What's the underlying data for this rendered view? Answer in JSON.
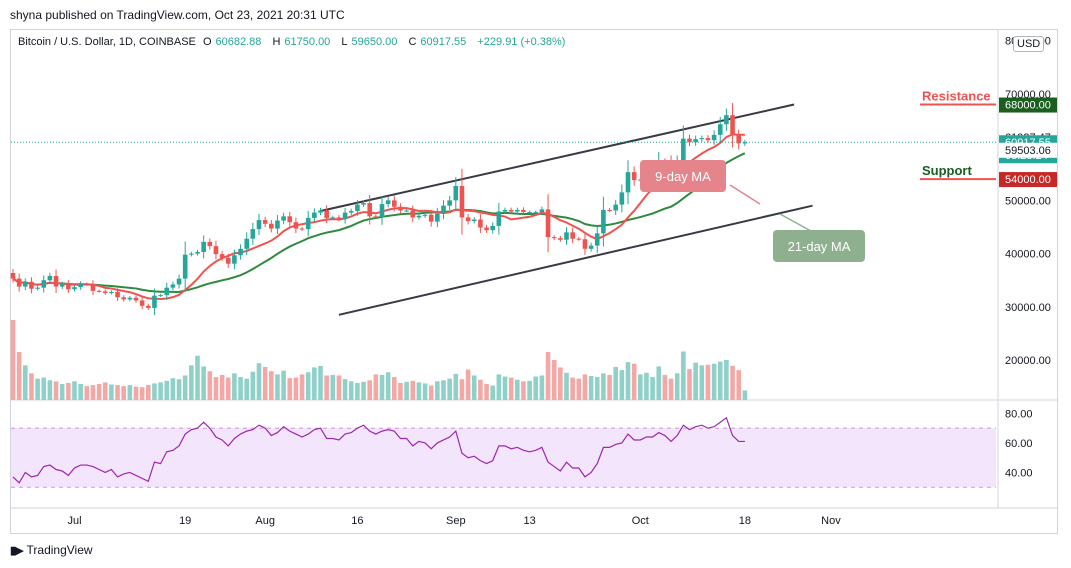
{
  "caption": "shyna published on TradingView.com, Oct 23, 2021 20:31 UTC",
  "symbol": {
    "name": "Bitcoin / U.S. Dollar, 1D, COINBASE",
    "open_label": "O",
    "open": "60682.88",
    "high_label": "H",
    "high": "61750.00",
    "low_label": "L",
    "low": "59650.00",
    "close_label": "C",
    "close": "60917.55",
    "change": "+229.91 (+0.38%)"
  },
  "currency_badge": "USD",
  "footer": "TradingView",
  "colors": {
    "up": "#26a69a",
    "down": "#ef5350",
    "ma9": "#ef5350",
    "ma21": "#2e8b3e",
    "rsi": "#9c27b0",
    "rsi_band": "#f3e5fc",
    "resistance": "#ef5350",
    "support": "#ef5350",
    "label_9ma_bg": "#e5848a",
    "label_21ma_bg": "#8fb08e"
  },
  "chart_data": {
    "type": "candlestick",
    "price_axis_ticks": [
      {
        "value": 80000,
        "label": "80000.00"
      },
      {
        "value": 70000,
        "label": "70000.00"
      },
      {
        "value": 50000,
        "label": "50000.00"
      },
      {
        "value": 40000,
        "label": "40000.00"
      },
      {
        "value": 30000,
        "label": "30000.00"
      },
      {
        "value": 20000,
        "label": "20000.00"
      }
    ],
    "price_range": [
      12500,
      82000
    ],
    "price_tags": [
      {
        "value": 68000,
        "label": "68000.00",
        "style": "resistance"
      },
      {
        "value": 61927.47,
        "label": "61927.47",
        "style": "plain"
      },
      {
        "value": 60917.55,
        "label": "60917.55",
        "sublabel": "03:28:24",
        "style": "current"
      },
      {
        "value": 59503.06,
        "label": "59503.06",
        "style": "plain"
      },
      {
        "value": 54000,
        "label": "54000.00",
        "style": "support"
      }
    ],
    "time_axis": [
      {
        "day": 10,
        "label": "Jul"
      },
      {
        "day": 28,
        "label": "19"
      },
      {
        "day": 41,
        "label": "Aug"
      },
      {
        "day": 56,
        "label": "16"
      },
      {
        "day": 72,
        "label": "Sep"
      },
      {
        "day": 84,
        "label": "13"
      },
      {
        "day": 102,
        "label": "Oct"
      },
      {
        "day": 119,
        "label": "18"
      },
      {
        "day": 133,
        "label": "Nov"
      }
    ],
    "horizontal_levels": [
      {
        "name": "Resistance",
        "value": 68000
      },
      {
        "name": "Support",
        "value": 54000
      }
    ],
    "channel_upper": [
      [
        50,
        48000
      ],
      [
        127,
        68000
      ]
    ],
    "channel_lower": [
      [
        53,
        28500
      ],
      [
        130,
        49000
      ]
    ],
    "ma_labels": [
      {
        "text": "9-day MA",
        "style": "ma9"
      },
      {
        "text": "21-day MA",
        "style": "ma21"
      }
    ],
    "closes": [
      35300,
      33800,
      34700,
      33400,
      33600,
      35000,
      35800,
      33800,
      34300,
      33300,
      33700,
      34300,
      34200,
      33000,
      32900,
      32600,
      32800,
      31800,
      31400,
      31700,
      31200,
      30200,
      29800,
      32100,
      32200,
      33600,
      34200,
      35300,
      39800,
      40000,
      40300,
      42200,
      41400,
      39900,
      39200,
      38100,
      39700,
      40900,
      42800,
      44600,
      46300,
      45600,
      44700,
      46200,
      47000,
      45900,
      44700,
      44600,
      46700,
      47700,
      48100,
      46700,
      46800,
      46500,
      47700,
      48000,
      49200,
      49500,
      47000,
      46900,
      49300,
      50000,
      48800,
      48100,
      48100,
      46800,
      47100,
      47300,
      46000,
      47500,
      49000,
      50000,
      52700,
      46800,
      46100,
      46400,
      44900,
      44400,
      45200,
      47900,
      48200,
      47900,
      48200,
      47800,
      47800,
      47800,
      48300,
      43100,
      42900,
      42600,
      44000,
      42800,
      42700,
      40900,
      41500,
      43800,
      48200,
      48100,
      49200,
      51500,
      55300,
      53800,
      53900,
      54900,
      55000,
      57500,
      57400,
      56000,
      57400,
      61600,
      60900,
      61500,
      61700,
      61300,
      62300,
      64300,
      66000,
      62200,
      60700,
      60900
    ],
    "volumes": [
      15000,
      9000,
      6500,
      5000,
      4000,
      4200,
      3700,
      3500,
      3000,
      3200,
      3500,
      3000,
      2600,
      2800,
      3000,
      3300,
      2900,
      2800,
      2600,
      2800,
      2500,
      2400,
      2800,
      3100,
      3300,
      3600,
      4100,
      3900,
      4600,
      6500,
      8300,
      6300,
      5400,
      4300,
      4700,
      4200,
      5000,
      4300,
      4000,
      5300,
      6900,
      6200,
      5400,
      4800,
      5500,
      4100,
      4200,
      4800,
      5200,
      6100,
      6400,
      4600,
      4700,
      4600,
      3900,
      3500,
      3200,
      3400,
      3700,
      4800,
      4700,
      5200,
      4300,
      3200,
      3400,
      3600,
      3300,
      3100,
      2700,
      3500,
      3700,
      4000,
      4900,
      3900,
      5700,
      4600,
      3800,
      3000,
      2700,
      4800,
      4400,
      4200,
      3800,
      3500,
      3600,
      4400,
      4600,
      9000,
      7500,
      6100,
      5100,
      4200,
      4000,
      4800,
      4500,
      4300,
      5000,
      4700,
      6200,
      5600,
      7100,
      6800,
      4800,
      5100,
      4300,
      6300,
      4700,
      4000,
      5000,
      9100,
      5800,
      7000,
      6500,
      6600,
      6800,
      7200,
      7500,
      6400,
      5600,
      1800
    ],
    "rsi_axis_ticks": [
      {
        "value": 80,
        "label": "80.00"
      },
      {
        "value": 60,
        "label": "60.00"
      },
      {
        "value": 40,
        "label": "40.00"
      }
    ],
    "rsi_band": [
      30,
      70
    ],
    "rsi": [
      37,
      33,
      40,
      37,
      38,
      44,
      45,
      42,
      41,
      38,
      43,
      45,
      45,
      44,
      42,
      40,
      42,
      37,
      39,
      40,
      38,
      36,
      34,
      47,
      46,
      54,
      55,
      58,
      66,
      69,
      70,
      74,
      70,
      64,
      62,
      58,
      63,
      66,
      68,
      69,
      72,
      70,
      65,
      67,
      71,
      68,
      66,
      64,
      66,
      69,
      70,
      63,
      63,
      62,
      66,
      67,
      70,
      72,
      68,
      66,
      68,
      69,
      68,
      63,
      63,
      58,
      61,
      60,
      56,
      60,
      62,
      64,
      68,
      53,
      50,
      51,
      48,
      46,
      48,
      58,
      58,
      56,
      57,
      55,
      54,
      55,
      57,
      47,
      44,
      41,
      47,
      43,
      43,
      37,
      40,
      46,
      57,
      57,
      59,
      60,
      66,
      62,
      62,
      64,
      64,
      67,
      65,
      61,
      65,
      72,
      69,
      71,
      72,
      70,
      71,
      74,
      77,
      65,
      61,
      61
    ]
  }
}
